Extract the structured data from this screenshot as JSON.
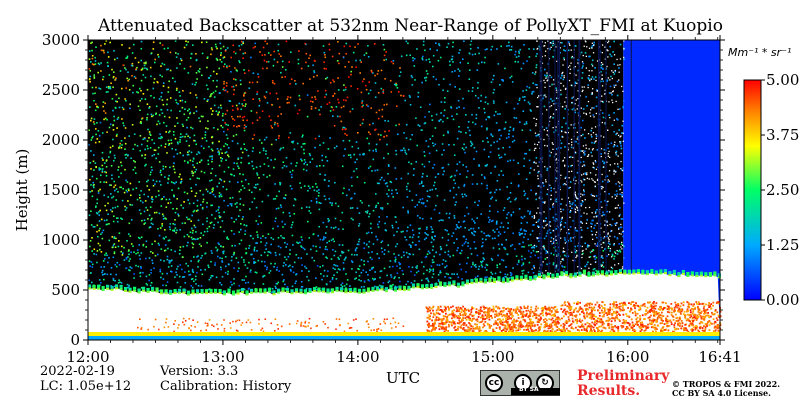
{
  "header": {
    "title": "Attenuated Backscatter at 532nm Near-Range of PollyXT_FMI at Kuopio"
  },
  "chart_data": {
    "type": "heatmap",
    "title": "Attenuated Backscatter at 532nm Near-Range of PollyXT_FMI at Kuopio",
    "xlabel": "UTC",
    "ylabel": "Height (m)",
    "x_ticks": [
      "12:00",
      "13:00",
      "14:00",
      "15:00",
      "16:00",
      "16:41"
    ],
    "x_tick_minutes": [
      0,
      60,
      120,
      180,
      240,
      281
    ],
    "x_range_minutes": [
      0,
      281
    ],
    "y_ticks": [
      0,
      500,
      1000,
      1500,
      2000,
      2500,
      3000
    ],
    "ylim": [
      0,
      3000
    ],
    "colorbar": {
      "unit": "Mm⁻¹ * sr⁻¹",
      "ticks": [
        "0.00",
        "1.25",
        "2.50",
        "3.75",
        "5.00"
      ],
      "tick_values": [
        0.0,
        1.25,
        2.5,
        3.75,
        5.0
      ],
      "range": [
        0.0,
        5.0
      ],
      "colors": [
        "#0000ff",
        "#00aaff",
        "#00ff66",
        "#ffff00",
        "#ff8800",
        "#ff0000"
      ]
    },
    "features": {
      "saturated_layer_top_m": [
        520,
        460,
        470,
        480,
        520,
        600,
        650,
        660,
        640
      ],
      "saturated_layer_top_minutes": [
        0,
        40,
        80,
        120,
        150,
        190,
        220,
        250,
        281
      ],
      "high_signal_region_start_min": 150,
      "noise_column_start_min": 198,
      "clear_background_start_min": 238,
      "clear_background_value": 0.3,
      "surface_band_m": [
        40,
        80
      ]
    },
    "grid": false
  },
  "footer": {
    "date": "2022-02-19",
    "lc": "LC: 1.05e+12",
    "version": "Version: 3.3",
    "calibration": "Calibration: History",
    "license_badge_text": "BY   SA",
    "preliminary_line1": "Preliminary",
    "preliminary_line2": "Results.",
    "copyright_line1": "© TROPOS & FMI 2022.",
    "copyright_line2": "CC BY SA 4.0 License."
  }
}
